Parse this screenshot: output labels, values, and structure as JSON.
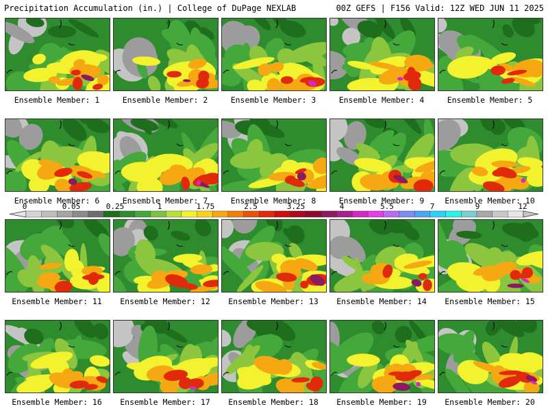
{
  "header": {
    "left_title": "Precipitation Accumulation (in.) | College of DuPage NEXLAB",
    "right_title": "00Z GEFS | F156 Valid: 12Z WED JUN 11 2025"
  },
  "colorbar": {
    "labels": [
      "0",
      "0.05",
      "0.25",
      "1",
      "1.75",
      "2.5",
      "3.25",
      "4",
      "5.5",
      "7",
      "9",
      "12"
    ],
    "colors": [
      "#d4d4d4",
      "#bdbdbd",
      "#a6a6a6",
      "#8c8c8c",
      "#6e6e6e",
      "#1e6e1e",
      "#2e8b2e",
      "#44a83a",
      "#7cc242",
      "#b8e03a",
      "#f2f22e",
      "#f7d21e",
      "#f5a811",
      "#f07f0d",
      "#e8550a",
      "#e02a0a",
      "#cc0f12",
      "#aa0a1e",
      "#8b0a2e",
      "#8b1a5e",
      "#a8208c",
      "#d628c8",
      "#e83ce8",
      "#b86cf2",
      "#7c8cf0",
      "#4aa6f0",
      "#2ed2f0",
      "#2ef0e6",
      "#7ad0d0",
      "#a8a8a8",
      "#c8c8c8",
      "#e6e6e6"
    ]
  },
  "members": [
    {
      "id": 1,
      "label": "Ensemble Member: 1"
    },
    {
      "id": 2,
      "label": "Ensemble Member: 2"
    },
    {
      "id": 3,
      "label": "Ensemble Member: 3"
    },
    {
      "id": 4,
      "label": "Ensemble Member: 4"
    },
    {
      "id": 5,
      "label": "Ensemble Member: 5"
    },
    {
      "id": 6,
      "label": "Ensemble Member: 6"
    },
    {
      "id": 7,
      "label": "Ensemble Member: 7"
    },
    {
      "id": 8,
      "label": "Ensemble Member: 8"
    },
    {
      "id": 9,
      "label": "Ensemble Member: 9"
    },
    {
      "id": 10,
      "label": "Ensemble Member: 10"
    },
    {
      "id": 11,
      "label": "Ensemble Member: 11"
    },
    {
      "id": 12,
      "label": "Ensemble Member: 12"
    },
    {
      "id": 13,
      "label": "Ensemble Member: 13"
    },
    {
      "id": 14,
      "label": "Ensemble Member: 14"
    },
    {
      "id": 15,
      "label": "Ensemble Member: 15"
    },
    {
      "id": 16,
      "label": "Ensemble Member: 16"
    },
    {
      "id": 17,
      "label": "Ensemble Member: 17"
    },
    {
      "id": 18,
      "label": "Ensemble Member: 18"
    },
    {
      "id": 19,
      "label": "Ensemble Member: 19"
    },
    {
      "id": 20,
      "label": "Ensemble Member: 20"
    }
  ]
}
